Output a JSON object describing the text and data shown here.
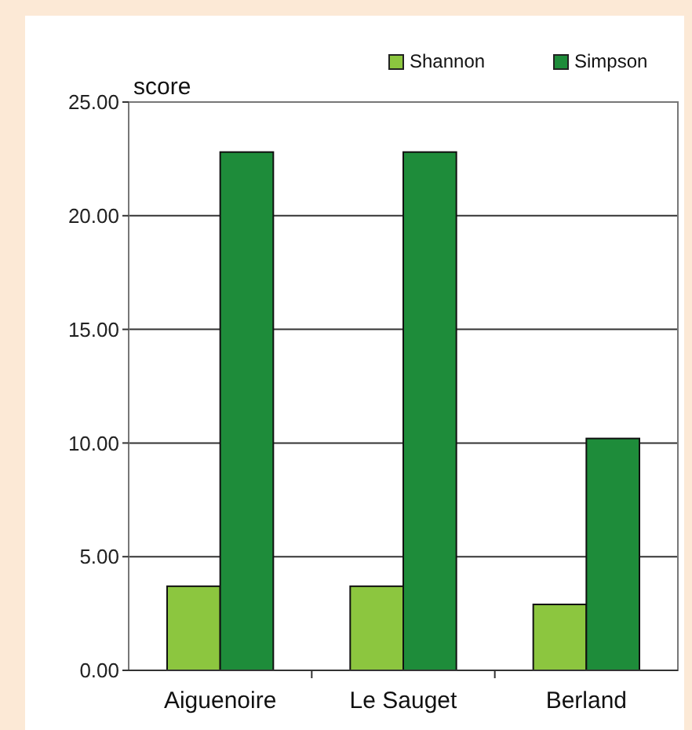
{
  "chart_data": {
    "type": "bar",
    "ylabel": "score",
    "categories": [
      "Aiguenoire",
      "Le Sauget",
      "Berland"
    ],
    "series": [
      {
        "name": "Shannon",
        "color": "#8cc63f",
        "values": [
          3.7,
          3.7,
          2.9
        ]
      },
      {
        "name": "Simpson",
        "color": "#1e8c3a",
        "values": [
          22.8,
          22.8,
          10.2
        ]
      }
    ],
    "ylim": [
      0,
      25
    ],
    "yticks": [
      {
        "value": 0,
        "label": "0.00"
      },
      {
        "value": 5,
        "label": "5.00"
      },
      {
        "value": 10,
        "label": "10.00"
      },
      {
        "value": 15,
        "label": "15.00"
      },
      {
        "value": 20,
        "label": "20.00"
      },
      {
        "value": 25,
        "label": "25.00"
      }
    ],
    "grid": "y",
    "legend": "top right"
  }
}
